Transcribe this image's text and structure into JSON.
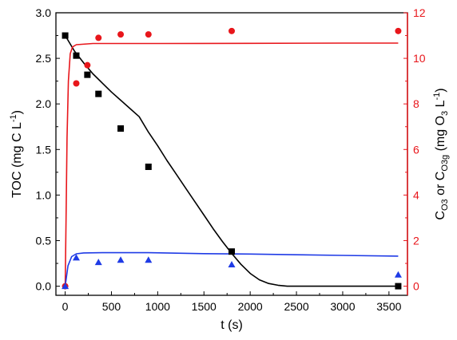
{
  "chart_data": {
    "type": "scatter",
    "xlabel": "t (s)",
    "ylabel_left": {
      "main": "TOC (mg C L",
      "sup": "-1",
      "close": ")"
    },
    "ylabel_right": {
      "p1": "C",
      "s1": "O3",
      "p2": " or C",
      "s2": "O3g",
      "p3": " (mg O",
      "s3": "3",
      "p4": " L",
      "sup": "-1",
      "p5": ")"
    },
    "xlim": [
      -100,
      3700
    ],
    "ylim_left": [
      -0.1,
      3.0
    ],
    "ylim_right": [
      -0.4,
      12
    ],
    "x_ticks": [
      0,
      500,
      1000,
      1500,
      2000,
      2500,
      3000,
      3500
    ],
    "y_ticks_left": [
      "0.0",
      "0.5",
      "1.0",
      "1.5",
      "2.0",
      "2.5",
      "3.0"
    ],
    "y_ticks_right": [
      "0",
      "2",
      "4",
      "6",
      "8",
      "10",
      "12"
    ],
    "colors": {
      "toc": "#000000",
      "ozone": "#e8161b",
      "third": "#1f3be6"
    },
    "series": [
      {
        "axis": "left",
        "marker": "square",
        "color": "#000000",
        "points": [
          [
            0,
            2.75
          ],
          [
            120,
            2.53
          ],
          [
            240,
            2.32
          ],
          [
            360,
            2.11
          ],
          [
            600,
            1.73
          ],
          [
            900,
            1.31
          ],
          [
            1800,
            0.38
          ],
          [
            3600,
            0.0
          ]
        ]
      },
      {
        "axis": "right",
        "marker": "circle",
        "color": "#e8161b",
        "points": [
          [
            0,
            0.0
          ],
          [
            120,
            8.9
          ],
          [
            240,
            9.7
          ],
          [
            360,
            10.9
          ],
          [
            600,
            11.05
          ],
          [
            900,
            11.05
          ],
          [
            1800,
            11.2
          ],
          [
            3600,
            11.2
          ]
        ]
      },
      {
        "axis": "right",
        "marker": "triangle",
        "color": "#1f3be6",
        "points": [
          [
            0,
            0.0
          ],
          [
            120,
            1.25
          ],
          [
            360,
            1.05
          ],
          [
            600,
            1.15
          ],
          [
            900,
            1.15
          ],
          [
            1800,
            0.95
          ],
          [
            3600,
            0.5
          ]
        ]
      }
    ],
    "lines": [
      {
        "axis": "left",
        "color": "#000000",
        "points": [
          [
            0,
            2.75
          ],
          [
            100,
            2.58
          ],
          [
            200,
            2.45
          ],
          [
            300,
            2.33
          ],
          [
            400,
            2.23
          ],
          [
            500,
            2.13
          ],
          [
            600,
            2.04
          ],
          [
            700,
            1.95
          ],
          [
            800,
            1.86
          ],
          [
            900,
            1.69
          ],
          [
            1000,
            1.54
          ],
          [
            1100,
            1.38
          ],
          [
            1200,
            1.23
          ],
          [
            1300,
            1.08
          ],
          [
            1400,
            0.93
          ],
          [
            1500,
            0.78
          ],
          [
            1600,
            0.63
          ],
          [
            1700,
            0.49
          ],
          [
            1800,
            0.36
          ],
          [
            1900,
            0.24
          ],
          [
            2000,
            0.14
          ],
          [
            2100,
            0.07
          ],
          [
            2200,
            0.03
          ],
          [
            2300,
            0.01
          ],
          [
            2400,
            0.0
          ],
          [
            2500,
            0.0
          ],
          [
            3600,
            0.0
          ]
        ]
      },
      {
        "axis": "right",
        "color": "#e8161b",
        "points": [
          [
            0,
            0.0
          ],
          [
            10,
            3.0
          ],
          [
            20,
            6.5
          ],
          [
            35,
            9.0
          ],
          [
            55,
            10.2
          ],
          [
            80,
            10.5
          ],
          [
            120,
            10.6
          ],
          [
            300,
            10.65
          ],
          [
            1000,
            10.65
          ],
          [
            2000,
            10.66
          ],
          [
            3000,
            10.67
          ],
          [
            3600,
            10.67
          ]
        ]
      },
      {
        "axis": "right",
        "color": "#1f3be6",
        "points": [
          [
            0,
            0.0
          ],
          [
            30,
            0.9
          ],
          [
            70,
            1.3
          ],
          [
            120,
            1.42
          ],
          [
            200,
            1.46
          ],
          [
            400,
            1.47
          ],
          [
            900,
            1.47
          ],
          [
            1500,
            1.43
          ],
          [
            2000,
            1.41
          ],
          [
            2500,
            1.38
          ],
          [
            3000,
            1.35
          ],
          [
            3600,
            1.32
          ]
        ]
      }
    ]
  }
}
